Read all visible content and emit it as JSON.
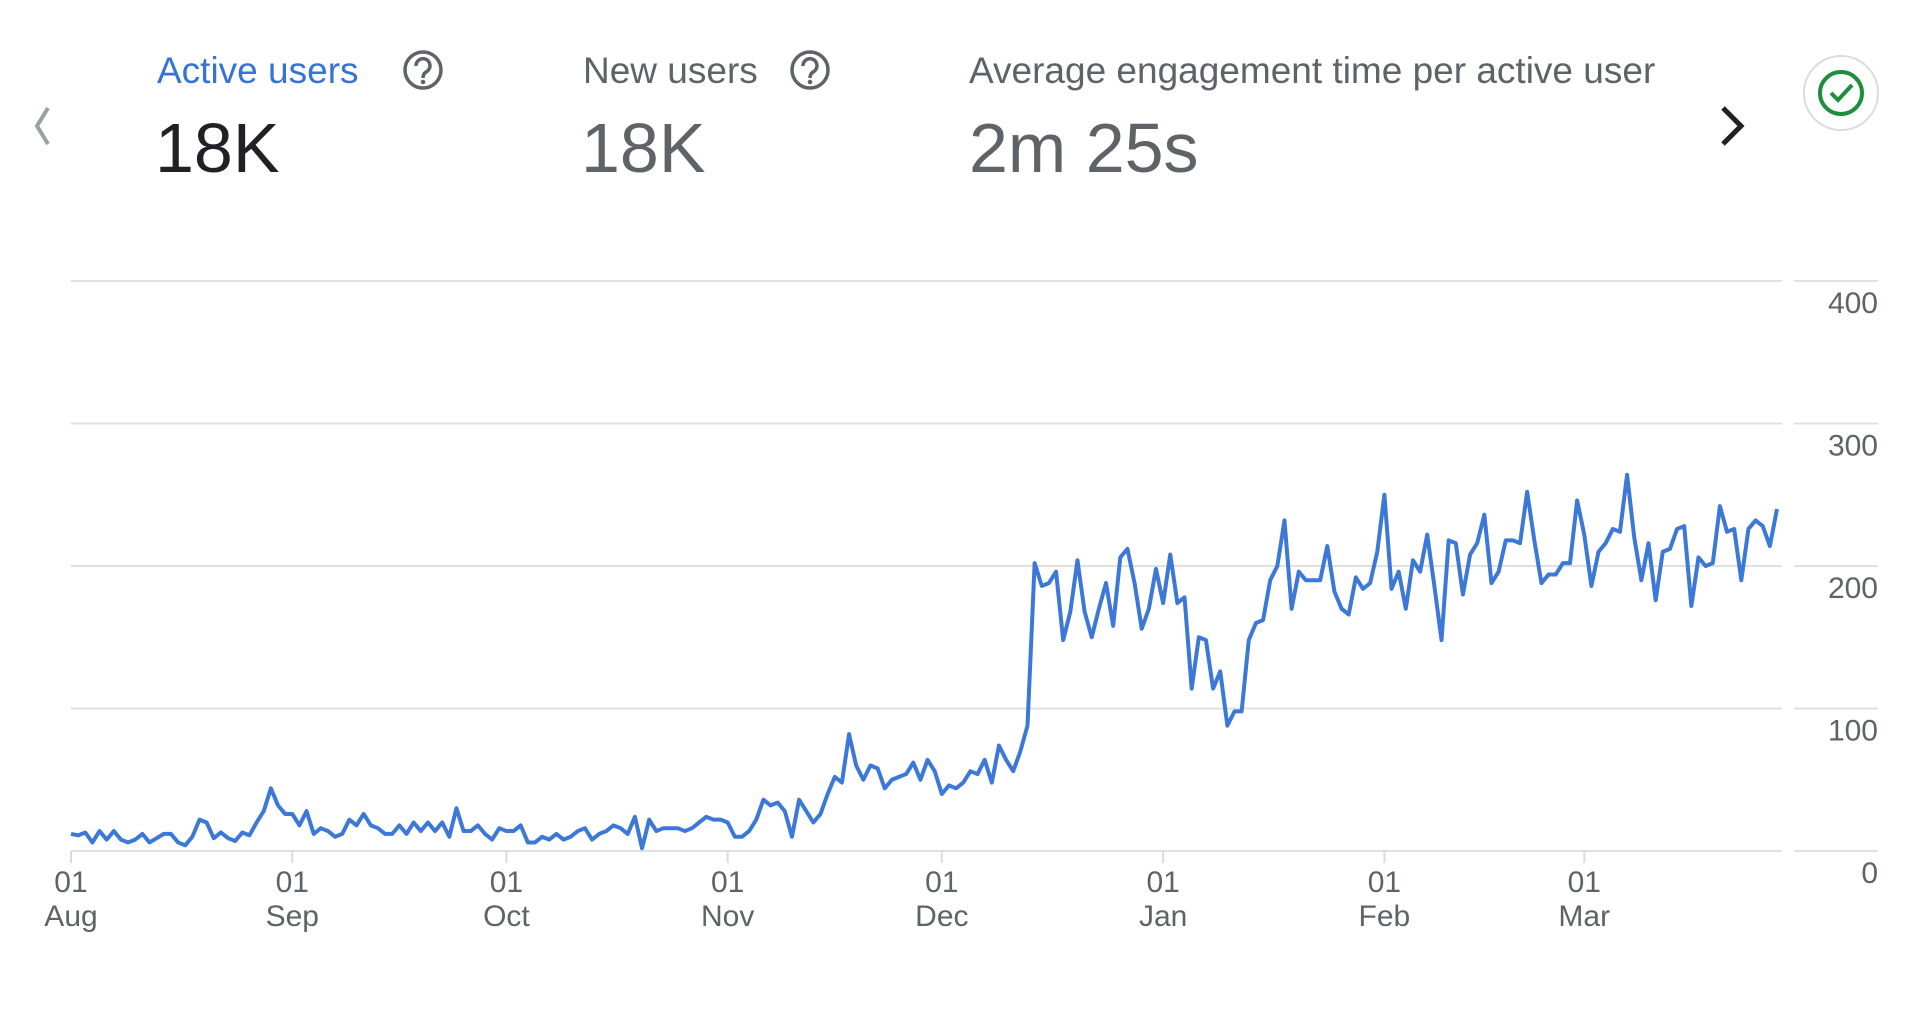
{
  "metrics": [
    {
      "label": "Active users",
      "value": "18K"
    },
    {
      "label": "New users",
      "value": "18K"
    },
    {
      "label": "Average engagement time per active user",
      "value": "2m 25s"
    }
  ],
  "chart_data": {
    "type": "line",
    "categories": [
      "01\nAug",
      null,
      null,
      null,
      null,
      null,
      null,
      null,
      null,
      null,
      null,
      null,
      null,
      null,
      null,
      null,
      null,
      null,
      null,
      null,
      null,
      null,
      null,
      null,
      null,
      null,
      null,
      null,
      null,
      null,
      null,
      "01\nSep",
      null,
      null,
      null,
      null,
      null,
      null,
      null,
      null,
      null,
      null,
      null,
      null,
      null,
      null,
      null,
      null,
      null,
      null,
      null,
      null,
      null,
      null,
      null,
      null,
      null,
      null,
      null,
      null,
      null,
      "01\nOct",
      null,
      null,
      null,
      null,
      null,
      null,
      null,
      null,
      null,
      null,
      null,
      null,
      null,
      null,
      null,
      null,
      null,
      null,
      null,
      null,
      null,
      null,
      null,
      null,
      null,
      null,
      null,
      null,
      null,
      null,
      "01\nNov",
      null,
      null,
      null,
      null,
      null,
      null,
      null,
      null,
      null,
      null,
      null,
      null,
      null,
      null,
      null,
      null,
      null,
      null,
      null,
      null,
      null,
      null,
      null,
      null,
      null,
      null,
      null,
      null,
      null,
      "01\nDec",
      null,
      null,
      null,
      null,
      null,
      null,
      null,
      null,
      null,
      null,
      null,
      null,
      null,
      null,
      null,
      null,
      null,
      null,
      null,
      null,
      null,
      null,
      null,
      null,
      null,
      null,
      null,
      null,
      null,
      null,
      "01\nJan",
      null,
      null,
      null,
      null,
      null,
      null,
      null,
      null,
      null,
      null,
      null,
      null,
      null,
      null,
      null,
      null,
      null,
      null,
      null,
      null,
      null,
      null,
      null,
      null,
      null,
      null,
      null,
      null,
      null,
      null,
      "01\nFeb",
      null,
      null,
      null,
      null,
      null,
      null,
      null,
      null,
      null,
      null,
      null,
      null,
      null,
      null,
      null,
      null,
      null,
      null,
      null,
      null,
      null,
      null,
      null,
      null,
      null,
      null,
      null,
      "01\nMar",
      null,
      null,
      null,
      null,
      null,
      null,
      null,
      null,
      null,
      null,
      null,
      null,
      null,
      null,
      null,
      null,
      null,
      null,
      null,
      null,
      null,
      null,
      null,
      null,
      null,
      null,
      null
    ],
    "values": [
      12,
      11,
      13,
      6,
      14,
      8,
      14,
      8,
      6,
      8,
      12,
      6,
      9,
      12,
      12,
      6,
      4,
      10,
      22,
      20,
      9,
      13,
      9,
      7,
      13,
      11,
      20,
      28,
      44,
      32,
      26,
      26,
      18,
      28,
      12,
      16,
      14,
      10,
      12,
      22,
      18,
      26,
      18,
      16,
      12,
      12,
      18,
      12,
      20,
      14,
      20,
      14,
      20,
      10,
      30,
      14,
      14,
      18,
      12,
      8,
      16,
      14,
      14,
      18,
      6,
      6,
      10,
      8,
      12,
      8,
      10,
      14,
      16,
      8,
      12,
      14,
      18,
      16,
      12,
      24,
      2,
      22,
      14,
      16,
      16,
      16,
      14,
      16,
      20,
      24,
      22,
      22,
      20,
      10,
      10,
      14,
      22,
      36,
      32,
      34,
      28,
      10,
      36,
      28,
      20,
      26,
      40,
      52,
      48,
      82,
      60,
      50,
      60,
      58,
      44,
      50,
      52,
      54,
      62,
      50,
      64,
      56,
      40,
      46,
      44,
      48,
      56,
      54,
      64,
      48,
      74,
      64,
      56,
      70,
      88,
      202,
      186,
      188,
      196,
      148,
      168,
      204,
      168,
      150,
      170,
      188,
      158,
      206,
      212,
      188,
      156,
      170,
      198,
      174,
      208,
      174,
      178,
      114,
      150,
      148,
      114,
      126,
      88,
      98,
      98,
      148,
      160,
      162,
      190,
      200,
      232,
      170,
      196,
      190,
      190,
      190,
      214,
      182,
      170,
      166,
      192,
      184,
      188,
      210,
      250,
      184,
      196,
      170,
      204,
      196,
      222,
      186,
      148,
      218,
      216,
      180,
      208,
      216,
      236,
      188,
      196,
      218,
      218,
      216,
      252,
      218,
      188,
      194,
      194,
      202,
      202,
      246,
      222,
      186,
      210,
      216,
      226,
      224,
      264,
      220,
      190,
      216,
      176,
      210,
      212,
      226,
      228,
      172,
      206,
      200,
      202,
      242,
      224,
      226,
      190,
      226,
      232,
      228,
      214,
      240
    ],
    "color": "#3b78d8",
    "ylim": [
      0,
      400
    ],
    "yticks": [
      0,
      100,
      200,
      300,
      400
    ],
    "grid": true
  }
}
